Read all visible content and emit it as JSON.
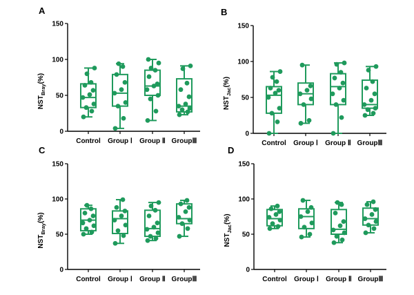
{
  "colors": {
    "accent": "#1f9a5c",
    "axis": "#000000"
  },
  "chart_data": [
    {
      "panel": "A",
      "type": "box",
      "ylabel_main": "NST",
      "ylabel_sub": "Bray",
      "ylabel_unit": "(%)",
      "ylim": [
        0,
        150
      ],
      "yticks": [
        "0",
        "50",
        "100",
        "150"
      ],
      "categories": [
        "Control",
        "Group Ⅰ",
        "Group Ⅱ",
        "GroupⅢ"
      ],
      "boxes": [
        {
          "min": 20,
          "q1": 33,
          "median": 47,
          "q3": 66,
          "max": 88
        },
        {
          "min": 4,
          "q1": 35,
          "median": 53,
          "q3": 79,
          "max": 94
        },
        {
          "min": 15,
          "q1": 50,
          "median": 63,
          "q3": 85,
          "max": 100
        },
        {
          "min": 23,
          "q1": 27,
          "median": 35,
          "q3": 73,
          "max": 91
        }
      ],
      "points": [
        [
          20,
          28,
          33,
          38,
          47,
          51,
          57,
          64,
          68,
          80,
          88
        ],
        [
          4,
          18,
          35,
          40,
          53,
          58,
          68,
          79,
          90,
          94
        ],
        [
          15,
          28,
          45,
          50,
          58,
          63,
          66,
          76,
          85,
          88,
          95,
          100
        ],
        [
          23,
          27,
          30,
          32,
          35,
          38,
          48,
          58,
          67,
          87,
          91
        ]
      ]
    },
    {
      "panel": "B",
      "type": "box",
      "ylabel_main": "NST",
      "ylabel_sub": "Jac",
      "ylabel_unit": "(%)",
      "ylim": [
        0,
        150
      ],
      "yticks": [
        "0",
        "50",
        "100",
        "150"
      ],
      "categories": [
        "Control",
        "Group Ⅰ",
        "Group Ⅱ",
        "GroupⅢ"
      ],
      "boxes": [
        {
          "min": 0,
          "q1": 28,
          "median": 53,
          "q3": 65,
          "max": 86
        },
        {
          "min": 14,
          "q1": 40,
          "median": 55,
          "q3": 70,
          "max": 95
        },
        {
          "min": 0,
          "q1": 40,
          "median": 65,
          "q3": 83,
          "max": 98
        },
        {
          "min": 25,
          "q1": 35,
          "median": 40,
          "q3": 74,
          "max": 93
        }
      ],
      "points": [
        [
          0,
          16,
          28,
          35,
          50,
          56,
          60,
          63,
          72,
          78,
          86
        ],
        [
          14,
          18,
          40,
          48,
          55,
          60,
          66,
          95
        ],
        [
          0,
          22,
          40,
          46,
          55,
          63,
          70,
          77,
          85,
          96,
          98
        ],
        [
          25,
          28,
          33,
          35,
          40,
          46,
          55,
          63,
          72,
          88,
          93
        ]
      ]
    },
    {
      "panel": "C",
      "type": "box",
      "ylabel_main": "NST",
      "ylabel_sub": "Bray",
      "ylabel_unit": "(%)",
      "ylim": [
        0,
        150
      ],
      "yticks": [
        "0",
        "50",
        "100",
        "150"
      ],
      "categories": [
        "Control",
        "Group Ⅰ",
        "Group Ⅱ",
        "GroupⅢ"
      ],
      "boxes": [
        {
          "min": 50,
          "q1": 55,
          "median": 70,
          "q3": 86,
          "max": 91
        },
        {
          "min": 37,
          "q1": 51,
          "median": 72,
          "q3": 83,
          "max": 99
        },
        {
          "min": 41,
          "q1": 47,
          "median": 58,
          "q3": 84,
          "max": 95
        },
        {
          "min": 47,
          "q1": 65,
          "median": 72,
          "q3": 93,
          "max": 98
        }
      ],
      "points": [
        [
          50,
          53,
          58,
          62,
          66,
          70,
          76,
          80,
          86,
          91
        ],
        [
          37,
          48,
          55,
          63,
          70,
          76,
          83,
          88,
          99
        ],
        [
          41,
          44,
          47,
          52,
          57,
          60,
          66,
          76,
          84,
          90,
          95
        ],
        [
          47,
          58,
          65,
          70,
          74,
          82,
          88,
          93,
          98
        ]
      ]
    },
    {
      "panel": "D",
      "type": "box",
      "ylabel_main": "NST",
      "ylabel_sub": "Jac",
      "ylabel_unit": "(%)",
      "ylim": [
        0,
        150
      ],
      "yticks": [
        "0",
        "50",
        "100",
        "150"
      ],
      "categories": [
        "Control",
        "Group Ⅰ",
        "Group Ⅱ",
        "GroupⅢ"
      ],
      "boxes": [
        {
          "min": 58,
          "q1": 62,
          "median": 72,
          "q3": 85,
          "max": 90
        },
        {
          "min": 46,
          "q1": 58,
          "median": 75,
          "q3": 86,
          "max": 98
        },
        {
          "min": 38,
          "q1": 50,
          "median": 57,
          "q3": 85,
          "max": 95
        },
        {
          "min": 52,
          "q1": 63,
          "median": 72,
          "q3": 87,
          "max": 96
        }
      ],
      "points": [
        [
          58,
          61,
          65,
          70,
          74,
          78,
          82,
          86,
          90
        ],
        [
          46,
          50,
          60,
          66,
          75,
          82,
          88,
          98
        ],
        [
          38,
          42,
          47,
          52,
          56,
          62,
          68,
          80,
          92,
          95
        ],
        [
          52,
          58,
          63,
          68,
          72,
          78,
          85,
          92,
          96
        ]
      ]
    }
  ]
}
